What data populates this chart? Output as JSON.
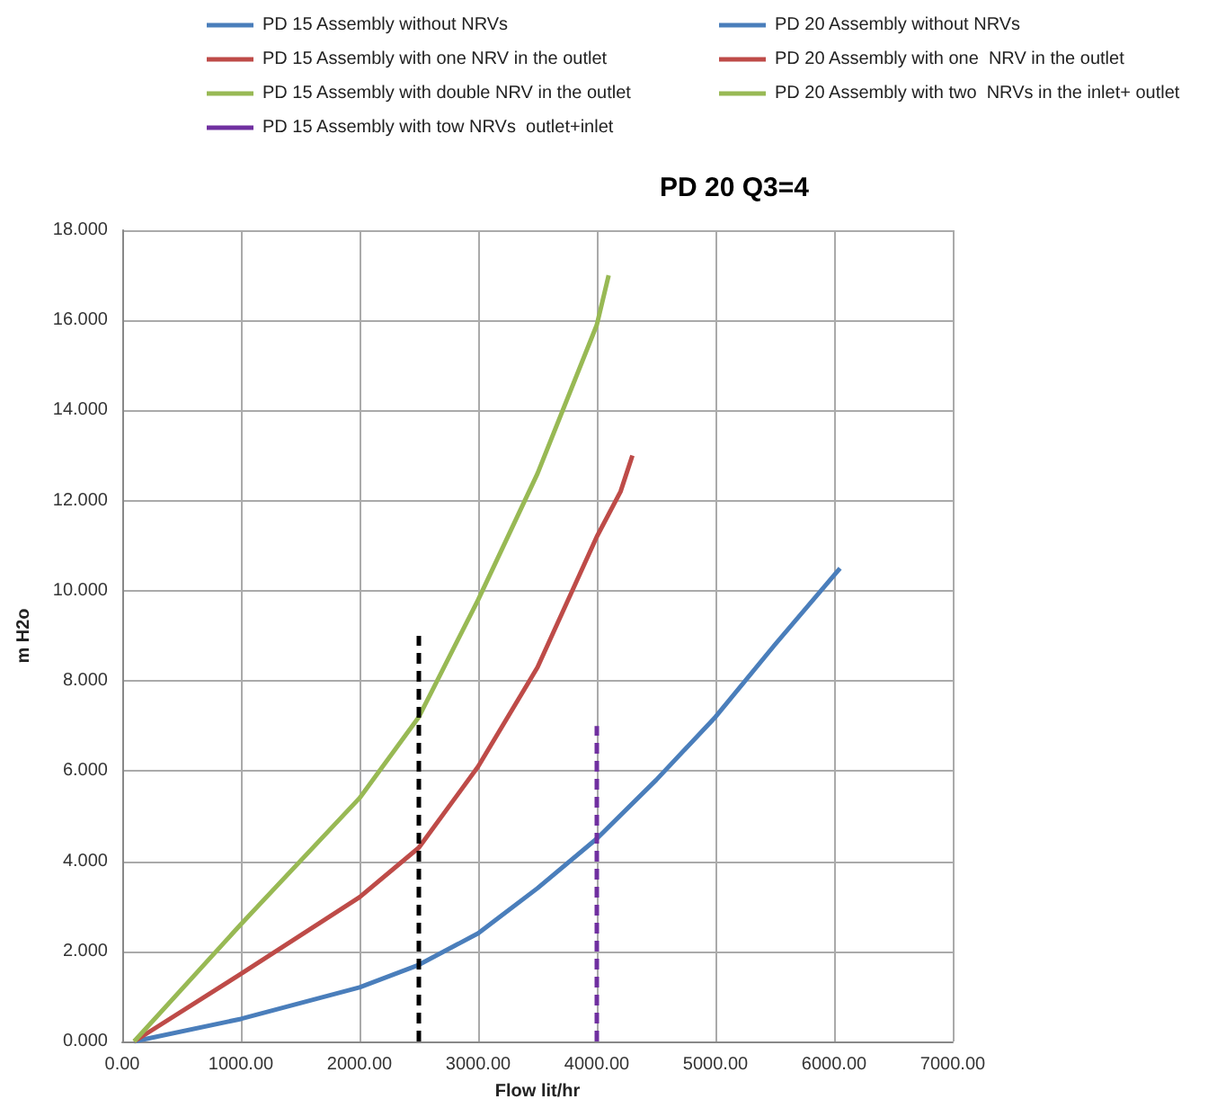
{
  "chart_data": {
    "type": "line",
    "title": "PD 20 Q3=4",
    "xlabel": "Flow lit/hr",
    "ylabel": "m H2o",
    "xlim": [
      0,
      7000
    ],
    "xticks": [
      {
        "value": 0,
        "label": "0.00"
      },
      {
        "value": 1000,
        "label": "1000.00"
      },
      {
        "value": 2000,
        "label": "2000.00"
      },
      {
        "value": 3000,
        "label": "3000.00"
      },
      {
        "value": 4000,
        "label": "4000.00"
      },
      {
        "value": 5000,
        "label": "5000.00"
      },
      {
        "value": 6000,
        "label": "6000.00"
      },
      {
        "value": 7000,
        "label": "7000.00"
      }
    ],
    "ylim": [
      0,
      18
    ],
    "yticks": [
      {
        "value": 0,
        "label": "0.000"
      },
      {
        "value": 2,
        "label": "2.000"
      },
      {
        "value": 4,
        "label": "4.000"
      },
      {
        "value": 6,
        "label": "6.000"
      },
      {
        "value": 8,
        "label": "8.000"
      },
      {
        "value": 10,
        "label": "10.000"
      },
      {
        "value": 12,
        "label": "12.000"
      },
      {
        "value": 14,
        "label": "14.000"
      },
      {
        "value": 16,
        "label": "16.000"
      },
      {
        "value": 18,
        "label": "18.000"
      }
    ],
    "grid": true,
    "legend": "top",
    "marker": "none",
    "series": [
      {
        "name": "PD 15 Assembly without NRVs",
        "color": "#4a7ebb"
      },
      {
        "name": "PD 20 Assembly without NRVs",
        "color": "#4a7ebb",
        "x": [
          100,
          1000,
          2000,
          2500,
          3000,
          3500,
          4000,
          4500,
          5000,
          5500,
          6050
        ],
        "values": [
          0,
          0.5,
          1.2,
          1.7,
          2.4,
          3.4,
          4.5,
          5.8,
          7.2,
          8.8,
          10.5
        ]
      },
      {
        "name": "PD 15 Assembly with one NRV in the outlet",
        "color": "#be4b48"
      },
      {
        "name": "PD 20 Assembly with one  NRV in the outlet",
        "color": "#be4b48",
        "x": [
          100,
          1000,
          2000,
          2500,
          3000,
          3500,
          4000,
          4200,
          4300
        ],
        "values": [
          0,
          1.5,
          3.2,
          4.3,
          6.1,
          8.3,
          11.2,
          12.2,
          13
        ]
      },
      {
        "name": "PD 15 Assembly with double NRV in the outlet",
        "color": "#98b954"
      },
      {
        "name": "PD 20 Assembly with two  NRVs in the inlet+ outlet",
        "color": "#98b954",
        "x": [
          100,
          1000,
          2000,
          2500,
          3000,
          3500,
          4000,
          4100
        ],
        "values": [
          0,
          2.6,
          5.4,
          7.2,
          9.8,
          12.6,
          15.9,
          17
        ]
      },
      {
        "name": "PD 15 Assembly with tow NRVs  outlet+inlet",
        "color": "#7030a0",
        "line_style": "dashed",
        "x": [
          4000,
          4000
        ],
        "values": [
          0,
          7
        ]
      },
      {
        "color": "#000000",
        "line_style": "dashed",
        "x": [
          2500,
          2500
        ],
        "values": [
          0,
          9
        ]
      }
    ]
  }
}
